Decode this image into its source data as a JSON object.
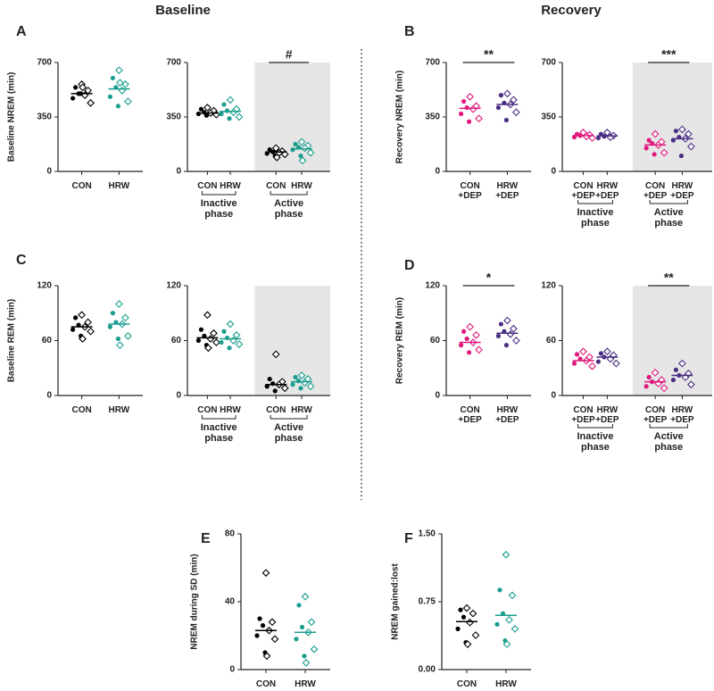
{
  "headers": [
    "Baseline",
    "Recovery"
  ],
  "panels": [
    "A",
    "B",
    "C",
    "D",
    "E",
    "F"
  ],
  "chart_data": [
    {
      "type": "dot",
      "ylabel": "Baseline NREM (min)",
      "ylim": [
        0,
        700
      ],
      "yticks": [
        0,
        350,
        700
      ],
      "series": [
        {
          "name": "CON",
          "color": "#000000",
          "values": [
            560,
            540,
            520,
            500,
            490,
            470,
            440,
            500,
            540
          ],
          "mean": 500
        },
        {
          "name": "HRW",
          "color": "#1a9e8f",
          "values": [
            650,
            600,
            560,
            540,
            520,
            480,
            450,
            420,
            570
          ],
          "mean": 530
        }
      ]
    },
    {
      "type": "dot",
      "ylim": [
        0,
        700
      ],
      "yticks": [
        0,
        350,
        700
      ],
      "phases": [
        "Inactive phase",
        "Active phase"
      ],
      "annotation": "#",
      "series": [
        {
          "name": "CON",
          "color": "#000000",
          "values": [
            410,
            400,
            390,
            380,
            375,
            370,
            365,
            360
          ],
          "mean": 375
        },
        {
          "name": "HRW",
          "color": "#1a9e8f",
          "values": [
            460,
            430,
            400,
            390,
            380,
            370,
            350,
            340
          ],
          "mean": 385
        },
        {
          "name": "CON",
          "color": "#000000",
          "values": [
            150,
            140,
            130,
            125,
            120,
            115,
            110,
            100,
            90
          ],
          "mean": 125
        },
        {
          "name": "HRW",
          "color": "#1a9e8f",
          "values": [
            190,
            175,
            165,
            155,
            150,
            140,
            120,
            100,
            70
          ],
          "mean": 145
        }
      ]
    },
    {
      "type": "dot",
      "ylabel": "Recovery NREM (min)",
      "ylim": [
        0,
        700
      ],
      "yticks": [
        0,
        350,
        700
      ],
      "annotation": "**",
      "series": [
        {
          "name": "CON +DEP",
          "color": "#e0197d",
          "values": [
            480,
            450,
            420,
            410,
            400,
            370,
            340,
            320
          ],
          "mean": 405
        },
        {
          "name": "HRW +DEP",
          "color": "#4b2e83",
          "values": [
            500,
            490,
            460,
            440,
            430,
            410,
            380,
            330
          ],
          "mean": 430
        }
      ]
    },
    {
      "type": "dot",
      "ylim": [
        0,
        700
      ],
      "yticks": [
        0,
        350,
        700
      ],
      "phases": [
        "Inactive phase",
        "Active phase"
      ],
      "annotation": "***",
      "series": [
        {
          "name": "CON +DEP",
          "color": "#e0197d",
          "values": [
            250,
            240,
            235,
            230,
            225,
            220,
            215
          ],
          "mean": 230
        },
        {
          "name": "HRW +DEP",
          "color": "#4b2e83",
          "values": [
            250,
            240,
            230,
            225,
            220,
            215
          ],
          "mean": 228
        },
        {
          "name": "CON +DEP",
          "color": "#e0197d",
          "values": [
            240,
            200,
            190,
            180,
            170,
            150,
            120,
            110
          ],
          "mean": 170
        },
        {
          "name": "HRW +DEP",
          "color": "#4b2e83",
          "values": [
            270,
            260,
            240,
            220,
            210,
            200,
            160,
            100
          ],
          "mean": 210
        }
      ]
    },
    {
      "type": "dot",
      "ylabel": "Baseline REM (min)",
      "ylim": [
        0,
        120
      ],
      "yticks": [
        0,
        60,
        120
      ],
      "series": [
        {
          "name": "CON",
          "color": "#000000",
          "values": [
            88,
            85,
            80,
            77,
            75,
            72,
            70,
            65,
            62
          ],
          "mean": 75
        },
        {
          "name": "HRW",
          "color": "#1a9e8f",
          "values": [
            100,
            90,
            85,
            80,
            78,
            75,
            65,
            62,
            55
          ],
          "mean": 78
        }
      ]
    },
    {
      "type": "dot",
      "ylim": [
        0,
        120
      ],
      "yticks": [
        0,
        60,
        120
      ],
      "phases": [
        "Inactive phase",
        "Active phase"
      ],
      "series": [
        {
          "name": "CON",
          "color": "#000000",
          "values": [
            88,
            72,
            68,
            65,
            62,
            60,
            58,
            55,
            52
          ],
          "mean": 63
        },
        {
          "name": "HRW",
          "color": "#1a9e8f",
          "values": [
            78,
            70,
            66,
            63,
            60,
            58,
            56,
            52
          ],
          "mean": 62
        },
        {
          "name": "CON",
          "color": "#000000",
          "values": [
            45,
            18,
            15,
            13,
            12,
            10,
            8,
            5
          ],
          "mean": 12
        },
        {
          "name": "HRW",
          "color": "#1a9e8f",
          "values": [
            22,
            20,
            18,
            16,
            14,
            12,
            10,
            8
          ],
          "mean": 15
        }
      ]
    },
    {
      "type": "dot",
      "ylabel": "Recovery REM (min)",
      "ylim": [
        0,
        120
      ],
      "yticks": [
        0,
        60,
        120
      ],
      "annotation": "*",
      "series": [
        {
          "name": "CON +DEP",
          "color": "#e0197d",
          "values": [
            75,
            70,
            66,
            62,
            58,
            55,
            50,
            47
          ],
          "mean": 58
        },
        {
          "name": "HRW +DEP",
          "color": "#4b2e83",
          "values": [
            82,
            78,
            73,
            70,
            67,
            65,
            60,
            55
          ],
          "mean": 68
        }
      ]
    },
    {
      "type": "dot",
      "ylim": [
        0,
        120
      ],
      "yticks": [
        0,
        60,
        120
      ],
      "phases": [
        "Inactive phase",
        "Active phase"
      ],
      "annotation": "**",
      "series": [
        {
          "name": "CON +DEP",
          "color": "#e0197d",
          "values": [
            48,
            45,
            42,
            40,
            38,
            35,
            32
          ],
          "mean": 38
        },
        {
          "name": "HRW +DEP",
          "color": "#4b2e83",
          "values": [
            48,
            46,
            44,
            42,
            40,
            37,
            35
          ],
          "mean": 42
        },
        {
          "name": "CON +DEP",
          "color": "#e0197d",
          "values": [
            25,
            20,
            17,
            15,
            13,
            10,
            8
          ],
          "mean": 15
        },
        {
          "name": "HRW +DEP",
          "color": "#4b2e83",
          "values": [
            35,
            28,
            24,
            22,
            20,
            17,
            12
          ],
          "mean": 22
        }
      ]
    },
    {
      "type": "dot",
      "ylabel": "NREM during SD (min)",
      "ylim": [
        0,
        80
      ],
      "yticks": [
        0,
        40,
        80
      ],
      "series": [
        {
          "name": "CON",
          "color": "#000000",
          "values": [
            57,
            30,
            28,
            26,
            23,
            20,
            18,
            10,
            8
          ],
          "mean": 23
        },
        {
          "name": "HRW",
          "color": "#1a9e8f",
          "values": [
            43,
            38,
            28,
            25,
            22,
            18,
            12,
            8,
            4
          ],
          "mean": 22
        }
      ]
    },
    {
      "type": "dot",
      "ylabel": "NREM gained:lost",
      "ylim": [
        0,
        1.5
      ],
      "yticks": [
        {
          "value": 0,
          "label": "0.00"
        },
        {
          "value": 0.75,
          "label": "0.75"
        },
        {
          "value": 1.5,
          "label": "1.50"
        }
      ],
      "series": [
        {
          "name": "CON",
          "color": "#000000",
          "values": [
            0.68,
            0.66,
            0.62,
            0.58,
            0.52,
            0.45,
            0.38,
            0.3,
            0.28
          ],
          "mean": 0.53
        },
        {
          "name": "HRW",
          "color": "#1a9e8f",
          "values": [
            1.27,
            0.88,
            0.82,
            0.62,
            0.55,
            0.5,
            0.45,
            0.32,
            0.28
          ],
          "mean": 0.6
        }
      ]
    }
  ]
}
